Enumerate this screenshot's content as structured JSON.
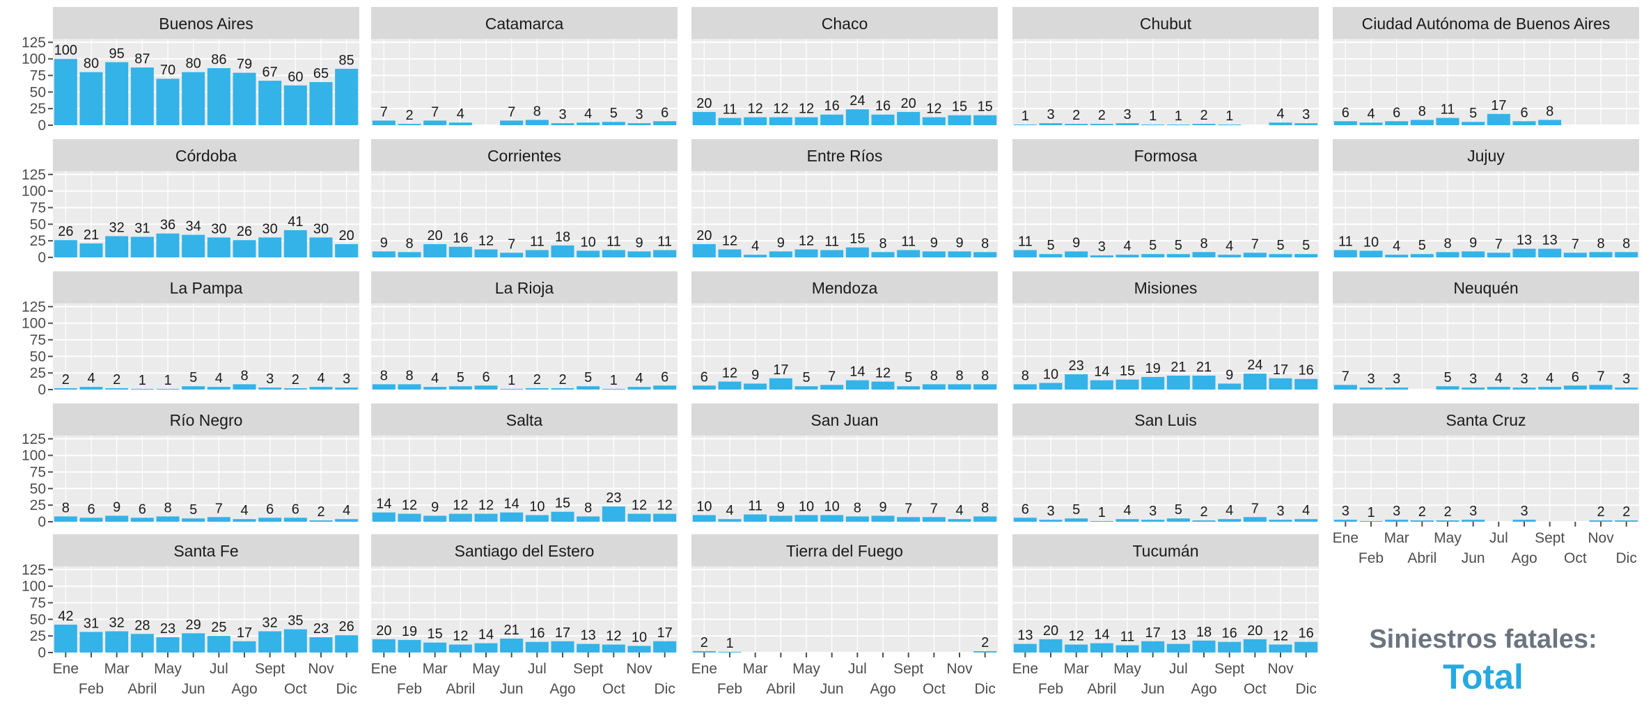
{
  "colors": {
    "bar": "#33b3e8",
    "panel": "#ebebeb",
    "strip": "#d9d9d9",
    "text": "#1a1a1a",
    "axis": "#4d4d4d"
  },
  "caption": {
    "line1": "Siniestros fatales:",
    "line2": "Total"
  },
  "chart_data": {
    "type": "bar",
    "layout": "facet-grid",
    "categories": [
      "Ene",
      "Feb",
      "Mar",
      "Abril",
      "May",
      "Jun",
      "Jul",
      "Ago",
      "Sept",
      "Oct",
      "Nov",
      "Dic"
    ],
    "x_tick_labels_row1": [
      "Ene",
      "Mar",
      "May",
      "Jul",
      "Sept",
      "Nov"
    ],
    "x_tick_labels_row2": [
      "Feb",
      "Abril",
      "Jun",
      "Ago",
      "Oct",
      "Dic"
    ],
    "y_ticks": [
      0,
      25,
      50,
      75,
      100,
      125
    ],
    "ylim": [
      0,
      130
    ],
    "grid": true,
    "facets": [
      {
        "name": "Buenos Aires",
        "values": [
          100,
          80,
          95,
          87,
          70,
          80,
          86,
          79,
          67,
          60,
          65,
          85
        ]
      },
      {
        "name": "Catamarca",
        "values": [
          7,
          2,
          7,
          4,
          null,
          7,
          8,
          3,
          4,
          5,
          3,
          6
        ]
      },
      {
        "name": "Chaco",
        "values": [
          20,
          11,
          12,
          12,
          12,
          16,
          24,
          16,
          20,
          12,
          15,
          15
        ]
      },
      {
        "name": "Chubut",
        "values": [
          1,
          3,
          2,
          2,
          3,
          1,
          1,
          2,
          1,
          null,
          4,
          3
        ]
      },
      {
        "name": "Ciudad Autónoma de Buenos Aires",
        "values": [
          6,
          4,
          6,
          8,
          11,
          5,
          17,
          6,
          8,
          null,
          null,
          null
        ]
      },
      {
        "name": "Córdoba",
        "values": [
          26,
          21,
          32,
          31,
          36,
          34,
          30,
          26,
          30,
          41,
          30,
          20
        ]
      },
      {
        "name": "Corrientes",
        "values": [
          9,
          8,
          20,
          16,
          12,
          7,
          11,
          18,
          10,
          11,
          9,
          11
        ]
      },
      {
        "name": "Entre Ríos",
        "values": [
          20,
          12,
          4,
          9,
          12,
          11,
          15,
          8,
          11,
          9,
          9,
          8
        ]
      },
      {
        "name": "Formosa",
        "values": [
          11,
          5,
          9,
          3,
          4,
          5,
          5,
          8,
          4,
          7,
          5,
          5
        ]
      },
      {
        "name": "Jujuy",
        "values": [
          11,
          10,
          4,
          5,
          8,
          9,
          7,
          13,
          13,
          7,
          8,
          8
        ]
      },
      {
        "name": "La Pampa",
        "values": [
          2,
          4,
          2,
          1,
          1,
          5,
          4,
          8,
          3,
          2,
          4,
          3
        ]
      },
      {
        "name": "La Rioja",
        "values": [
          8,
          8,
          4,
          5,
          6,
          1,
          2,
          2,
          5,
          1,
          4,
          6
        ]
      },
      {
        "name": "Mendoza",
        "values": [
          6,
          12,
          9,
          17,
          5,
          7,
          14,
          12,
          5,
          8,
          8,
          8
        ]
      },
      {
        "name": "Misiones",
        "values": [
          8,
          10,
          23,
          14,
          15,
          19,
          21,
          21,
          9,
          24,
          17,
          16
        ]
      },
      {
        "name": "Neuquén",
        "values": [
          7,
          3,
          3,
          null,
          5,
          3,
          4,
          3,
          4,
          6,
          7,
          3
        ]
      },
      {
        "name": "Río Negro",
        "values": [
          8,
          6,
          9,
          6,
          8,
          5,
          7,
          4,
          6,
          6,
          2,
          4
        ]
      },
      {
        "name": "Salta",
        "values": [
          14,
          12,
          9,
          12,
          12,
          14,
          10,
          15,
          8,
          23,
          12,
          12
        ]
      },
      {
        "name": "San Juan",
        "values": [
          10,
          4,
          11,
          9,
          10,
          10,
          8,
          9,
          7,
          7,
          4,
          8
        ]
      },
      {
        "name": "San Luis",
        "values": [
          6,
          3,
          5,
          1,
          4,
          3,
          5,
          2,
          4,
          7,
          3,
          4
        ]
      },
      {
        "name": "Santa Cruz",
        "values": [
          3,
          1,
          3,
          2,
          2,
          3,
          null,
          3,
          null,
          null,
          2,
          2
        ]
      },
      {
        "name": "Santa Fe",
        "values": [
          42,
          31,
          32,
          28,
          23,
          29,
          25,
          17,
          32,
          35,
          23,
          26
        ]
      },
      {
        "name": "Santiago del Estero",
        "values": [
          20,
          19,
          15,
          12,
          14,
          21,
          16,
          17,
          13,
          12,
          10,
          17
        ]
      },
      {
        "name": "Tierra del Fuego",
        "values": [
          2,
          1,
          null,
          null,
          null,
          null,
          null,
          null,
          null,
          null,
          null,
          2
        ]
      },
      {
        "name": "Tucumán",
        "values": [
          13,
          20,
          12,
          14,
          11,
          17,
          13,
          18,
          16,
          20,
          12,
          16
        ]
      }
    ]
  }
}
